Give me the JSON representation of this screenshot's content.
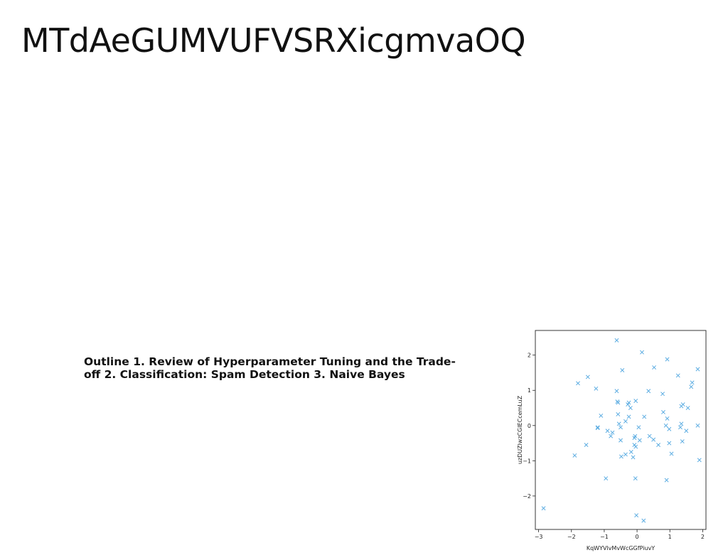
{
  "slide": {
    "title": "MTdAeGUMVUFVSRXicgmvaOQ",
    "body": "Outline 1. Review of Hyperparameter Tuning and the Trade-off 2. Classification: Spam Detection 3. Naive Bayes"
  },
  "chart_data": {
    "type": "scatter",
    "title": "",
    "xlabel": "KqWYVlvMvWcGGfPiuvY",
    "ylabel": "uzDUZlwzCGIECcemLuZ",
    "xlim": [
      -3.1,
      2.1
    ],
    "ylim": [
      -2.95,
      2.7
    ],
    "xticks": [
      -3,
      -2,
      -1,
      0,
      1,
      2
    ],
    "yticks": [
      -2,
      -1,
      0,
      1,
      2
    ],
    "xtick_labels": [
      "−3",
      "−2",
      "−1",
      "0",
      "1",
      "2"
    ],
    "ytick_labels": [
      "−2",
      "−1",
      "0",
      "1",
      "2"
    ],
    "marker": "x",
    "color": "#5dade2",
    "grid": false,
    "points": [
      [
        -2.85,
        -2.35
      ],
      [
        -1.9,
        -0.85
      ],
      [
        -1.8,
        1.2
      ],
      [
        -1.55,
        -0.55
      ],
      [
        -1.5,
        1.38
      ],
      [
        -1.25,
        1.05
      ],
      [
        -1.2,
        -0.05
      ],
      [
        -1.2,
        -0.07
      ],
      [
        -1.1,
        0.28
      ],
      [
        -0.95,
        -1.5
      ],
      [
        -0.9,
        -0.15
      ],
      [
        -0.8,
        -0.3
      ],
      [
        -0.75,
        -0.2
      ],
      [
        -0.62,
        2.42
      ],
      [
        -0.62,
        0.98
      ],
      [
        -0.6,
        0.68
      ],
      [
        -0.58,
        0.65
      ],
      [
        -0.58,
        0.32
      ],
      [
        -0.55,
        0.05
      ],
      [
        -0.5,
        -0.05
      ],
      [
        -0.5,
        -0.42
      ],
      [
        -0.48,
        -0.88
      ],
      [
        -0.45,
        1.57
      ],
      [
        -0.35,
        0.12
      ],
      [
        -0.35,
        -0.82
      ],
      [
        -0.28,
        0.6
      ],
      [
        -0.25,
        0.65
      ],
      [
        -0.25,
        0.25
      ],
      [
        -0.2,
        0.5
      ],
      [
        -0.18,
        -0.75
      ],
      [
        -0.12,
        -0.9
      ],
      [
        -0.08,
        -0.35
      ],
      [
        -0.08,
        -0.55
      ],
      [
        -0.06,
        -0.3
      ],
      [
        -0.04,
        0.7
      ],
      [
        -0.04,
        -0.6
      ],
      [
        -0.05,
        -1.5
      ],
      [
        -0.02,
        -2.55
      ],
      [
        0.05,
        -0.05
      ],
      [
        0.08,
        -0.42
      ],
      [
        0.15,
        2.08
      ],
      [
        0.2,
        -2.7
      ],
      [
        0.22,
        0.25
      ],
      [
        0.35,
        0.98
      ],
      [
        0.38,
        -0.3
      ],
      [
        0.5,
        -0.4
      ],
      [
        0.52,
        1.65
      ],
      [
        0.65,
        -0.55
      ],
      [
        0.78,
        0.9
      ],
      [
        0.8,
        0.38
      ],
      [
        0.88,
        0.0
      ],
      [
        0.9,
        -1.55
      ],
      [
        0.92,
        0.2
      ],
      [
        0.92,
        1.88
      ],
      [
        0.98,
        -0.1
      ],
      [
        0.98,
        -0.5
      ],
      [
        1.05,
        -0.8
      ],
      [
        1.25,
        1.42
      ],
      [
        1.32,
        -0.05
      ],
      [
        1.35,
        0.55
      ],
      [
        1.35,
        0.05
      ],
      [
        1.38,
        -0.45
      ],
      [
        1.4,
        0.6
      ],
      [
        1.5,
        -0.15
      ],
      [
        1.55,
        0.5
      ],
      [
        1.65,
        1.1
      ],
      [
        1.68,
        1.22
      ],
      [
        1.85,
        0.0
      ],
      [
        1.85,
        1.6
      ],
      [
        1.9,
        -0.98
      ]
    ]
  }
}
